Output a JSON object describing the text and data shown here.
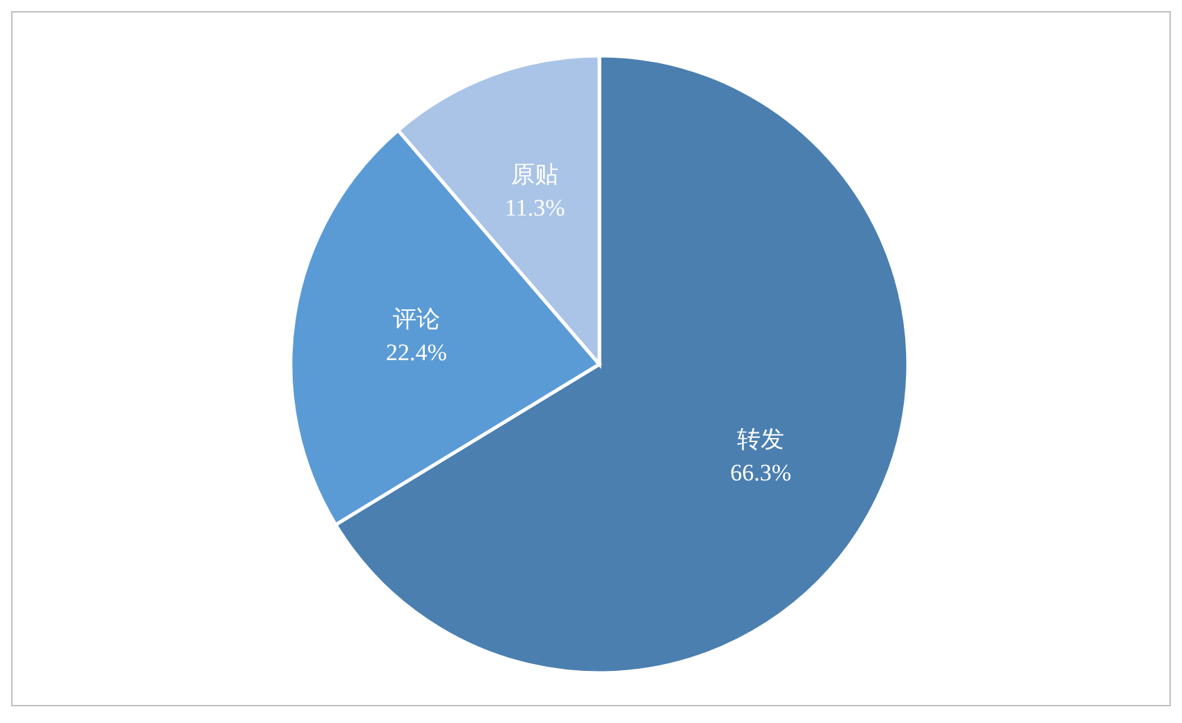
{
  "chart_data": {
    "type": "pie",
    "categories": [
      "转发",
      "评论",
      "原贴"
    ],
    "values": [
      66.3,
      22.4,
      11.3
    ],
    "colors": [
      "#4a7fb0",
      "#5b9bd5",
      "#a9c4e6"
    ],
    "value_labels": [
      "66.3%",
      "22.4%",
      "11.3%"
    ],
    "legend": false
  }
}
